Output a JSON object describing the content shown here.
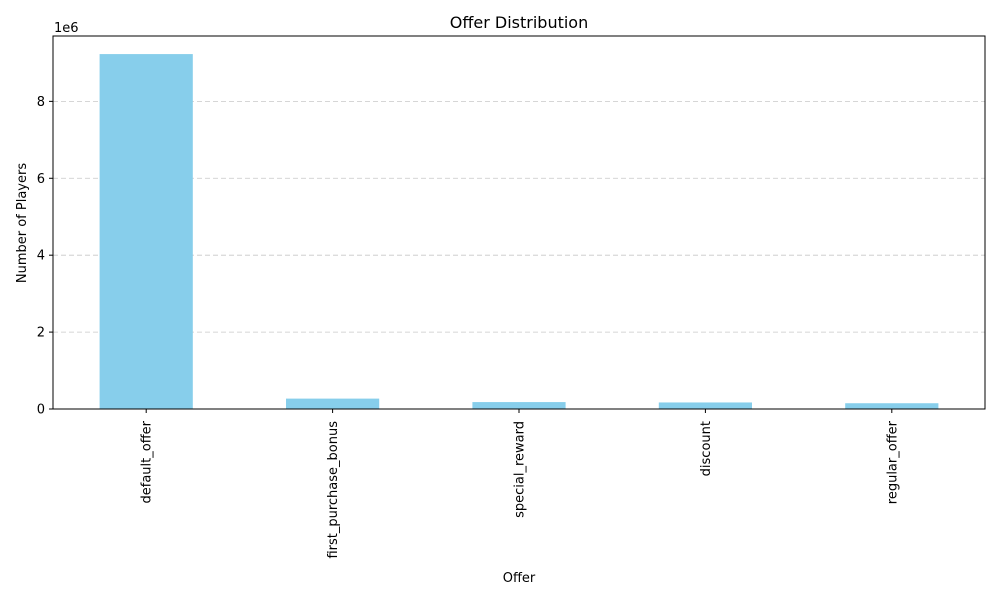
{
  "chart_data": {
    "type": "bar",
    "title": "Offer Distribution",
    "xlabel": "Offer",
    "ylabel": "Number of Players",
    "y_offset_text": "1e6",
    "categories": [
      "default_offer",
      "first_purchase_bonus",
      "special_reward",
      "discount",
      "regular_offer"
    ],
    "values": [
      9230000,
      270000,
      180000,
      170000,
      150000
    ],
    "y_ticks": [
      0,
      2,
      4,
      6,
      8
    ],
    "y_scale": 1000000,
    "ylim": [
      0,
      9700000
    ],
    "grid": "y-dashed",
    "bar_color": "#87ceeb"
  }
}
